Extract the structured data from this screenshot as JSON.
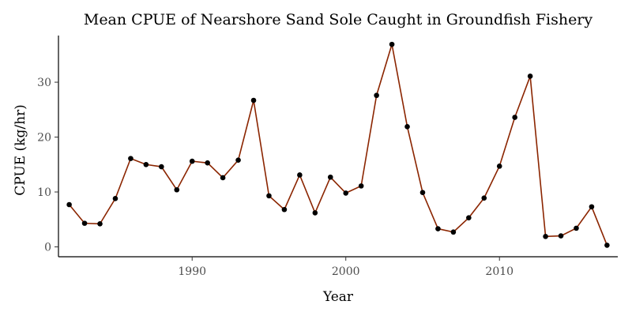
{
  "chart_data": {
    "type": "line",
    "title": "Mean CPUE of Nearshore Sand Sole Caught in Groundfish Fishery",
    "xlabel": "Year",
    "ylabel": "CPUE (kg/hr)",
    "xlim": [
      1981.3,
      2017.7
    ],
    "ylim": [
      -1.8,
      38.5
    ],
    "x_ticks": [
      1990,
      2000,
      2010
    ],
    "y_ticks": [
      0,
      10,
      20,
      30
    ],
    "grid": false,
    "legend": "none",
    "line_color": "#8b2500",
    "point_color": "#000000",
    "series": [
      {
        "x": [
          1982,
          1983,
          1984,
          1985,
          1986,
          1987,
          1988,
          1989,
          1990,
          1991,
          1992,
          1993,
          1994,
          1995,
          1996,
          1997,
          1998,
          1999,
          2000,
          2001,
          2002,
          2003,
          2004,
          2005,
          2006,
          2007,
          2008,
          2009,
          2010,
          2011,
          2012,
          2013,
          2014,
          2015,
          2016,
          2017
        ],
        "values": [
          7.7,
          4.3,
          4.2,
          8.8,
          16.1,
          15.0,
          14.6,
          10.4,
          15.6,
          15.3,
          12.6,
          15.8,
          26.7,
          9.3,
          6.8,
          13.1,
          6.2,
          12.7,
          9.8,
          11.1,
          27.6,
          36.9,
          21.9,
          9.9,
          3.3,
          2.7,
          5.3,
          8.9,
          14.7,
          23.6,
          31.1,
          1.9,
          2.0,
          3.4,
          7.3,
          0.3
        ]
      }
    ]
  }
}
